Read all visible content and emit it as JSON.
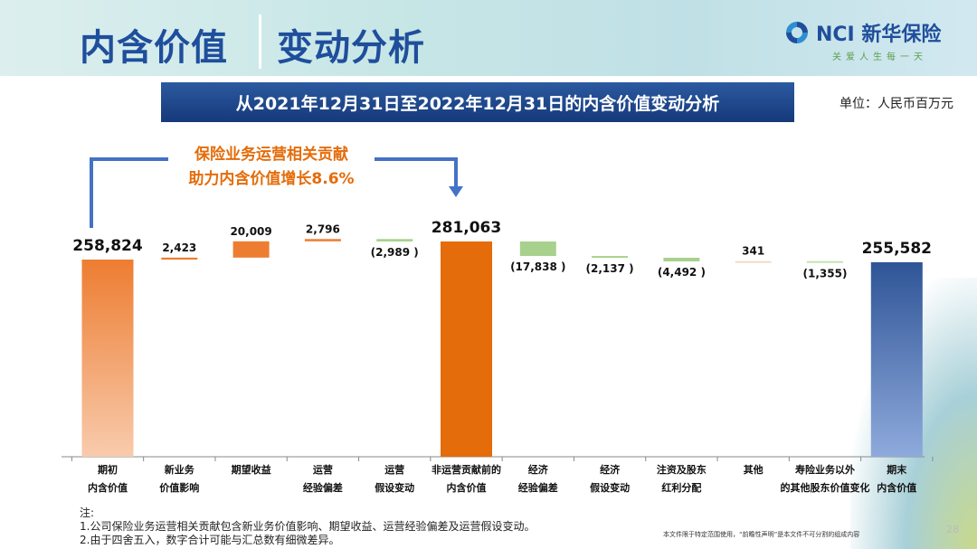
{
  "header": {
    "title_left": "内含价值",
    "title_right": "变动分析",
    "logo_text": "NCI 新华保险",
    "slogan": "关爱人生每一天"
  },
  "banner": "从2021年12月31日至2022年12月31日的内含价值变动分析",
  "unit": "单位：人民币百万元",
  "annotation": {
    "line1": "保险业务运营相关贡献",
    "line2": "助力内含价值增长8.6%"
  },
  "colors": {
    "start": "#ED7D31",
    "positive": "#ED7D31",
    "subtotal": "#E46C0A",
    "negative": "#A9D18E",
    "end": "#2F5597",
    "title": "#1F4E9C",
    "annotation": "#E46C0A"
  },
  "chart_data": {
    "type": "waterfall",
    "categories": [
      [
        "期初",
        "内含价值"
      ],
      [
        "新业务",
        "价值影响"
      ],
      [
        "期望收益",
        ""
      ],
      [
        "运营",
        "经验偏差"
      ],
      [
        "运营",
        "假设变动"
      ],
      [
        "非运营贡献前的",
        "内含价值"
      ],
      [
        "经济",
        "经验偏差"
      ],
      [
        "经济",
        "假设变动"
      ],
      [
        "注资及股东",
        "红利分配"
      ],
      [
        "其他",
        ""
      ],
      [
        "寿险业务以外",
        "的其他股东价值变化"
      ],
      [
        "期末",
        "内含价值"
      ]
    ],
    "values": [
      258824,
      2423,
      20009,
      2796,
      -2989,
      281063,
      -17838,
      -2137,
      -4492,
      341,
      -1355,
      255582
    ],
    "kinds": [
      "total",
      "delta",
      "delta",
      "delta",
      "delta",
      "total",
      "delta",
      "delta",
      "delta",
      "delta",
      "delta",
      "total"
    ],
    "labels": [
      "258,824",
      "2,423",
      "20,009",
      "2,796",
      "(2,989 )",
      "281,063",
      "(17,838 )",
      "(2,137 )",
      "(4,492 )",
      "341",
      "(1,355)",
      "255,582"
    ]
  },
  "notes": [
    "注:",
    "1.公司保险业务运营相关贡献包含新业务价值影响、期望收益、运营经验偏差及运营假设变动。",
    "2.由于四舍五入，数字合计可能与汇总数有细微差异。"
  ],
  "disclaimer": "本文件限于特定范围使用，“前瞻性声明”是本文件不可分割的组成内容",
  "page_number": "28"
}
